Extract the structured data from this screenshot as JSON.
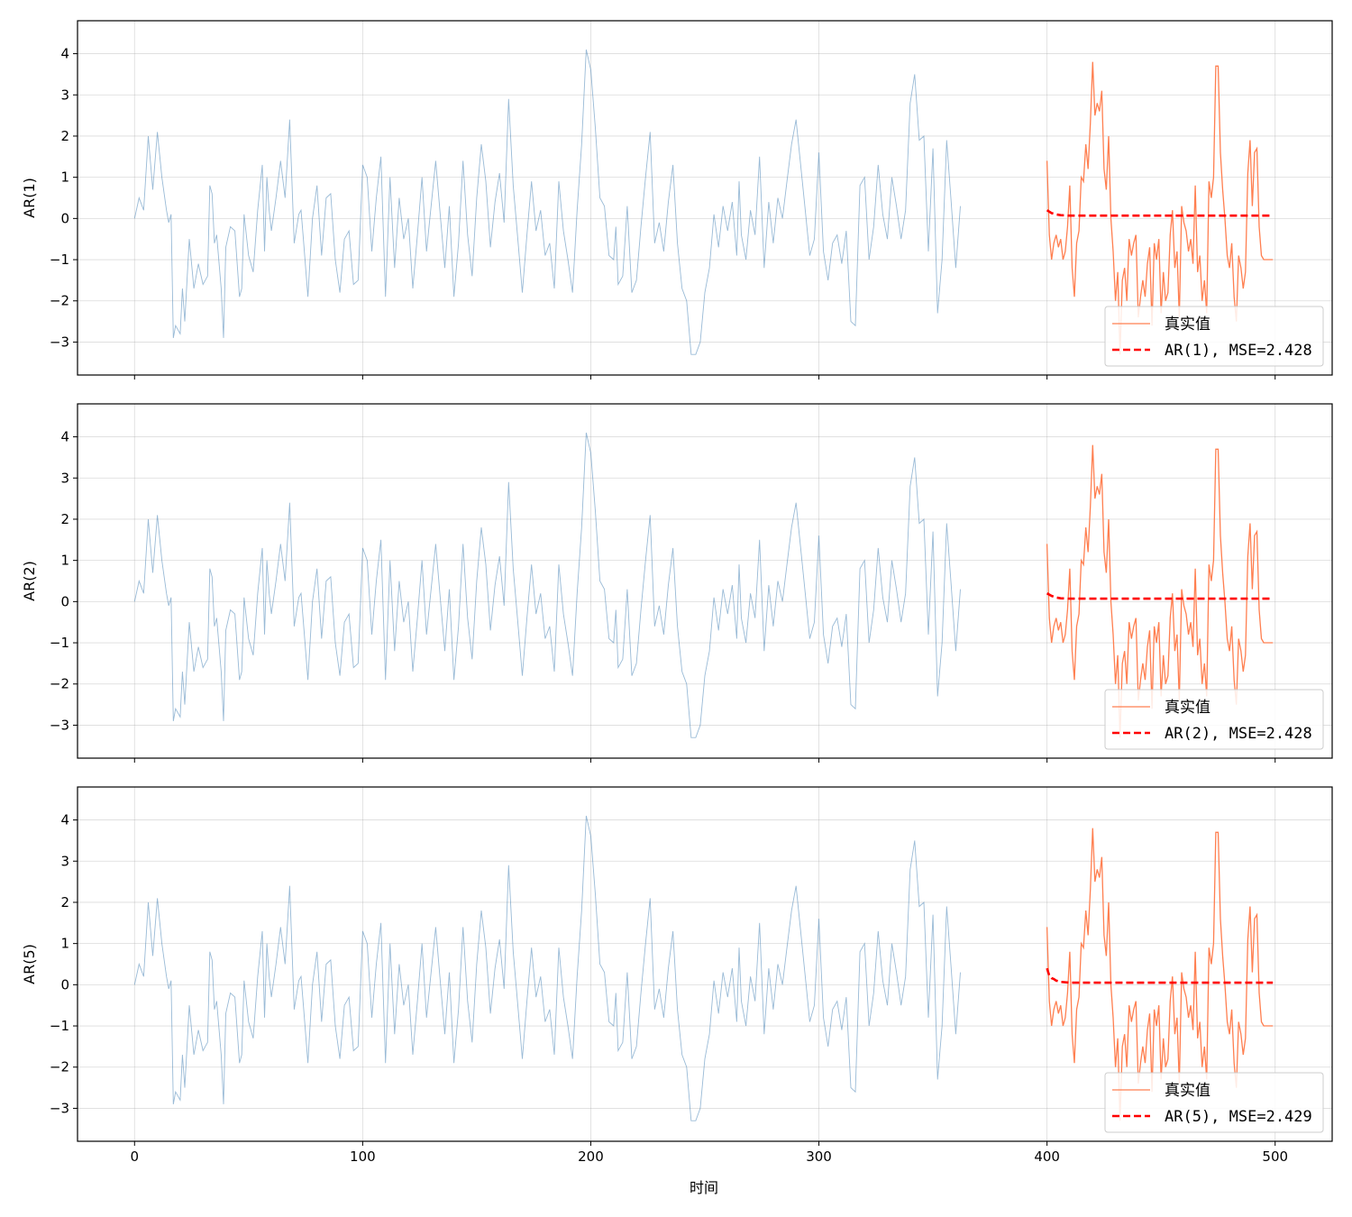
{
  "figure": {
    "xlabel": "时间"
  },
  "chart_data": [
    {
      "type": "line",
      "ylabel": "AR(1)",
      "xlim": [
        -25,
        525
      ],
      "ylim": [
        -3.8,
        4.8
      ],
      "xticks": [
        0,
        100,
        200,
        300,
        400,
        500
      ],
      "yticks": [
        -3,
        -2,
        -1,
        0,
        1,
        2,
        3,
        4
      ],
      "grid": true,
      "legend_placement": "lower-right",
      "series": [
        {
          "name": "",
          "role": "train",
          "color": "#4682b4"
        },
        {
          "name": "真实值",
          "role": "actual",
          "color": "#ff7f50"
        },
        {
          "name": "AR(1), MSE=2.428",
          "role": "forecast",
          "color": "#ff0000",
          "x": [
            400,
            402,
            404,
            406,
            410,
            420,
            440,
            499
          ],
          "values": [
            0.2,
            0.13,
            0.1,
            0.08,
            0.07,
            0.07,
            0.07,
            0.07
          ]
        }
      ]
    },
    {
      "type": "line",
      "ylabel": "AR(2)",
      "xlim": [
        -25,
        525
      ],
      "ylim": [
        -3.8,
        4.8
      ],
      "xticks": [
        0,
        100,
        200,
        300,
        400,
        500
      ],
      "yticks": [
        -3,
        -2,
        -1,
        0,
        1,
        2,
        3,
        4
      ],
      "grid": true,
      "legend_placement": "lower-right",
      "series": [
        {
          "name": "",
          "role": "train",
          "color": "#4682b4"
        },
        {
          "name": "真实值",
          "role": "actual",
          "color": "#ff7f50"
        },
        {
          "name": "AR(2), MSE=2.428",
          "role": "forecast",
          "color": "#ff0000",
          "x": [
            400,
            402,
            404,
            406,
            410,
            420,
            440,
            499
          ],
          "values": [
            0.2,
            0.14,
            0.1,
            0.08,
            0.07,
            0.07,
            0.07,
            0.07
          ]
        }
      ]
    },
    {
      "type": "line",
      "ylabel": "AR(5)",
      "xlim": [
        -25,
        525
      ],
      "ylim": [
        -3.8,
        4.8
      ],
      "xticks": [
        0,
        100,
        200,
        300,
        400,
        500
      ],
      "yticks": [
        -3,
        -2,
        -1,
        0,
        1,
        2,
        3,
        4
      ],
      "grid": true,
      "legend_placement": "lower-right",
      "series": [
        {
          "name": "",
          "role": "train",
          "color": "#4682b4"
        },
        {
          "name": "真实值",
          "role": "actual",
          "color": "#ff7f50"
        },
        {
          "name": "AR(5), MSE=2.429",
          "role": "forecast",
          "color": "#ff0000",
          "x": [
            400,
            401,
            402,
            403,
            404,
            406,
            410,
            420,
            440,
            499
          ],
          "values": [
            0.4,
            0.22,
            0.16,
            0.14,
            0.1,
            0.07,
            0.05,
            0.05,
            0.05,
            0.05
          ]
        }
      ]
    }
  ],
  "series_data": {
    "train_x": [
      0,
      2,
      4,
      6,
      8,
      10,
      12,
      14,
      15,
      16,
      17,
      18,
      20,
      21,
      22,
      24,
      26,
      28,
      30,
      32,
      33,
      34,
      35,
      36,
      38,
      39,
      40,
      42,
      44,
      46,
      47,
      48,
      50,
      52,
      54,
      56,
      57,
      58,
      59,
      60,
      62,
      64,
      66,
      68,
      70,
      72,
      73,
      74,
      76,
      78,
      80,
      82,
      84,
      86,
      88,
      90,
      92,
      94,
      96,
      98,
      100,
      102,
      104,
      106,
      108,
      110,
      112,
      114,
      116,
      118,
      120,
      122,
      124,
      126,
      128,
      130,
      132,
      134,
      136,
      138,
      140,
      142,
      144,
      146,
      148,
      150,
      152,
      154,
      156,
      158,
      160,
      162,
      164,
      166,
      168,
      170,
      172,
      174,
      176,
      178,
      180,
      182,
      184,
      186,
      188,
      190,
      192,
      194,
      196,
      198,
      200,
      202,
      204,
      206,
      208,
      210,
      211,
      212,
      214,
      216,
      218,
      220,
      222,
      224,
      226,
      228,
      230,
      232,
      234,
      236,
      238,
      240,
      242,
      244,
      246,
      248,
      250,
      252,
      254,
      256,
      258,
      260,
      262,
      264,
      265,
      266,
      268,
      270,
      272,
      274,
      276,
      278,
      280,
      282,
      284,
      286,
      288,
      290,
      292,
      294,
      296,
      298,
      300,
      302,
      304,
      306,
      308,
      310,
      312,
      314,
      316,
      318,
      320,
      322,
      324,
      326,
      328,
      330,
      332,
      334,
      336,
      338,
      340,
      342,
      344,
      346,
      348,
      350,
      352,
      354,
      356,
      358,
      360,
      362,
      364,
      366,
      368,
      370,
      372,
      374,
      375,
      376,
      378,
      380,
      382,
      384,
      386,
      388,
      390,
      392,
      394,
      396,
      398,
      400
    ],
    "train_y": [
      0.0,
      0.5,
      0.2,
      2.0,
      0.7,
      2.1,
      1.0,
      0.2,
      -0.1,
      0.1,
      -2.9,
      -2.6,
      -2.8,
      -1.7,
      -2.5,
      -0.5,
      -1.7,
      -1.1,
      -1.6,
      -1.4,
      0.8,
      0.6,
      -0.6,
      -0.4,
      -1.7,
      -2.9,
      -0.7,
      -0.2,
      -0.3,
      -1.9,
      -1.7,
      0.1,
      -0.9,
      -1.3,
      0.2,
      1.3,
      -0.8,
      1.0,
      0.2,
      -0.3,
      0.5,
      1.4,
      0.5,
      2.4,
      -0.6,
      0.1,
      0.2,
      -0.5,
      -1.9,
      0.0,
      0.8,
      -0.9,
      0.5,
      0.6,
      -1.0,
      -1.8,
      -0.5,
      -0.3,
      -1.6,
      -1.5,
      1.3,
      1.0,
      -0.8,
      0.5,
      1.5,
      -1.9,
      1.0,
      -1.2,
      0.5,
      -0.5,
      0.0,
      -1.7,
      -0.4,
      1.0,
      -0.8,
      0.3,
      1.4,
      0.1,
      -1.2,
      0.3,
      -1.9,
      -0.6,
      1.4,
      -0.4,
      -1.4,
      0.5,
      1.8,
      0.9,
      -0.7,
      0.4,
      1.1,
      -0.1,
      2.9,
      0.8,
      -0.5,
      -1.8,
      -0.4,
      0.9,
      -0.3,
      0.2,
      -0.9,
      -0.6,
      -1.7,
      0.9,
      -0.3,
      -1.0,
      -1.8,
      0.2,
      1.8,
      4.1,
      3.6,
      2.2,
      0.5,
      0.3,
      -0.9,
      -1.0,
      -0.2,
      -1.6,
      -1.4,
      0.3,
      -1.8,
      -1.5,
      -0.2,
      1.0,
      2.1,
      -0.6,
      -0.1,
      -0.8,
      0.4,
      1.3,
      -0.6,
      -1.7,
      -2.0,
      -3.3,
      -3.3,
      -3.0,
      -1.8,
      -1.2,
      0.1,
      -0.7,
      0.3,
      -0.3,
      0.4,
      -0.9,
      0.9,
      -0.4,
      -1.0,
      0.2,
      -0.4,
      1.5,
      -1.2,
      0.4,
      -0.6,
      0.5,
      0.0,
      0.9,
      1.8,
      2.4,
      1.3,
      0.2,
      -0.9,
      -0.5,
      1.6,
      -0.8,
      -1.5,
      -0.6,
      -0.4,
      -1.1,
      -0.3,
      -2.5,
      -2.6,
      0.8,
      1.0,
      -1.0,
      -0.2,
      1.3,
      0.1,
      -0.5,
      1.0,
      0.3,
      -0.5,
      0.2,
      2.8,
      3.5,
      1.9,
      2.0,
      -0.8,
      1.7,
      -2.3,
      -1.0,
      1.9,
      0.4,
      -1.2,
      0.3
    ],
    "actual_x": [
      400,
      401,
      402,
      403,
      404,
      405,
      406,
      407,
      408,
      409,
      410,
      411,
      412,
      413,
      414,
      415,
      416,
      417,
      418,
      419,
      420,
      421,
      422,
      423,
      424,
      425,
      426,
      427,
      428,
      429,
      430,
      431,
      432,
      433,
      434,
      435,
      436,
      437,
      438,
      439,
      440,
      441,
      442,
      443,
      444,
      445,
      446,
      447,
      448,
      449,
      450,
      451,
      452,
      453,
      454,
      455,
      456,
      457,
      458,
      459,
      460,
      461,
      462,
      463,
      464,
      465,
      466,
      467,
      468,
      469,
      470,
      471,
      472,
      473,
      474,
      475,
      476,
      477,
      478,
      479,
      480,
      481,
      482,
      483,
      484,
      485,
      486,
      487,
      488,
      489,
      490,
      491,
      492,
      493,
      494,
      495,
      496,
      497,
      498,
      499
    ],
    "actual_y": [
      1.4,
      -0.4,
      -1.0,
      -0.6,
      -0.4,
      -0.7,
      -0.5,
      -1.0,
      -0.8,
      -0.2,
      0.8,
      -1.2,
      -1.9,
      -0.6,
      -0.3,
      1.0,
      0.9,
      1.8,
      1.2,
      2.3,
      3.8,
      2.5,
      2.8,
      2.6,
      3.1,
      1.2,
      0.7,
      2.0,
      0.0,
      -0.8,
      -2.0,
      -1.3,
      -3.3,
      -1.5,
      -1.2,
      -2.0,
      -0.5,
      -0.9,
      -0.6,
      -0.4,
      -2.4,
      -1.9,
      -1.5,
      -1.9,
      -1.1,
      -0.7,
      -2.6,
      -0.6,
      -1.0,
      -0.5,
      -2.3,
      -1.3,
      -2.0,
      -1.8,
      -0.4,
      0.2,
      -1.2,
      -0.8,
      -2.4,
      0.3,
      -0.1,
      -0.3,
      -0.8,
      -0.5,
      -1.1,
      0.8,
      -1.3,
      -0.9,
      -2.0,
      -1.5,
      -2.3,
      0.9,
      0.5,
      1.0,
      3.7,
      3.7,
      1.6,
      0.7,
      0.0,
      -0.9,
      -1.2,
      -0.6,
      -1.9,
      -2.5,
      -0.9,
      -1.2,
      -1.7,
      -1.3,
      1.1,
      1.9,
      0.3,
      1.6,
      1.7,
      -0.2,
      -0.9,
      -1.0,
      -1.0,
      -1.0,
      -1.0,
      -1.0
    ]
  }
}
